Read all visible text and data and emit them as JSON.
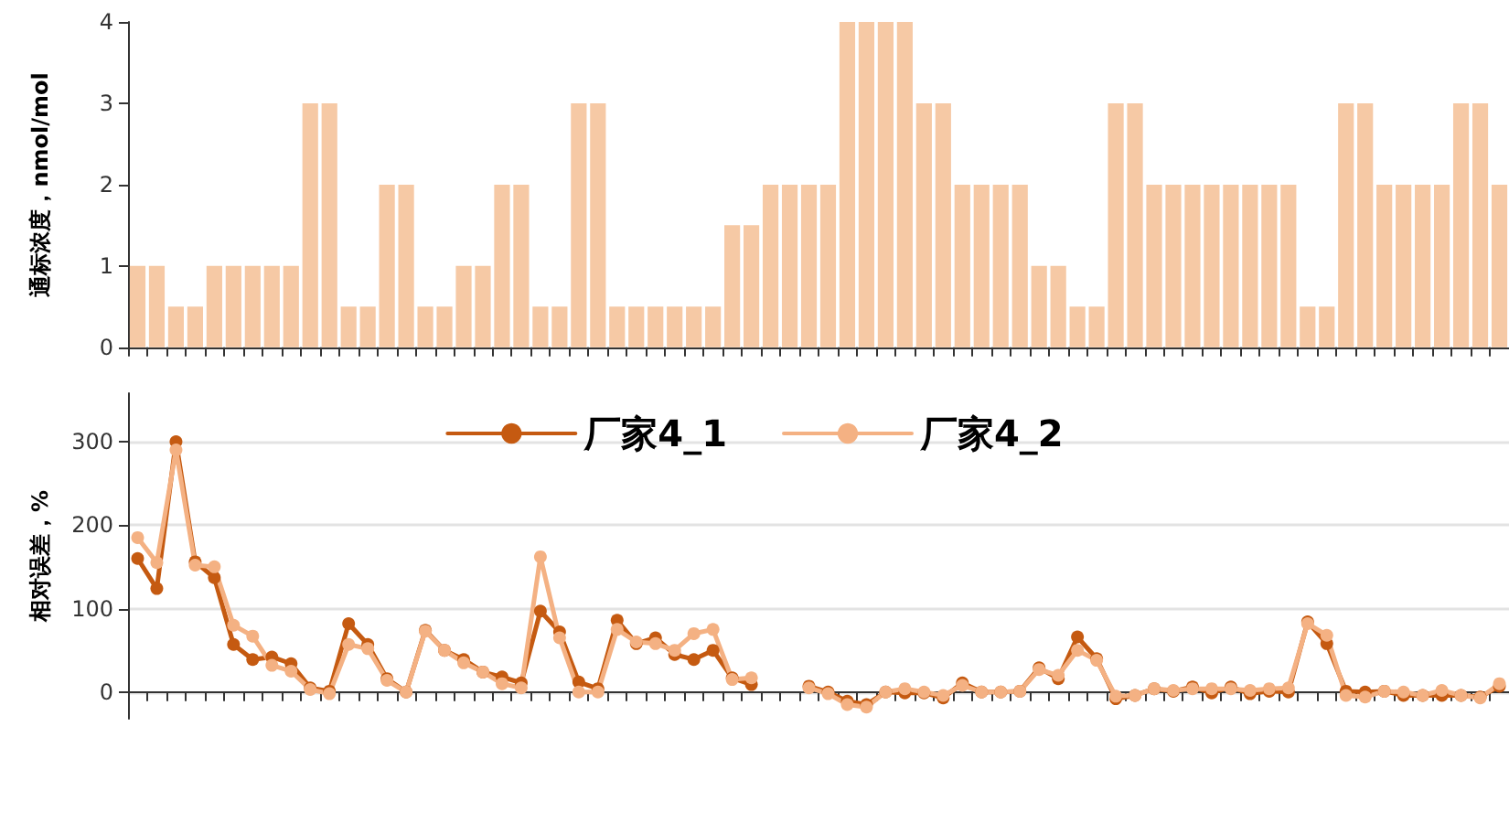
{
  "chart_data": [
    {
      "type": "bar",
      "ylabel": "通标浓度，nmol/mol",
      "color": "#f6c9a5",
      "ylim": [
        0,
        4
      ],
      "yticks": [
        0,
        1,
        2,
        3,
        4
      ],
      "grid": false,
      "legend": false,
      "categories": [
        null,
        null,
        null,
        null,
        null,
        null,
        null,
        null,
        null,
        null,
        null,
        null,
        null,
        null,
        null,
        null,
        null,
        null,
        null,
        null,
        null,
        null,
        null,
        null,
        null,
        null,
        null,
        null,
        null,
        null,
        null,
        null,
        null,
        null,
        null,
        null,
        null,
        null,
        null,
        null,
        null,
        null,
        null,
        null,
        null,
        null,
        null,
        null,
        null,
        null,
        null,
        null,
        null,
        null,
        null,
        null,
        null,
        null,
        null,
        null,
        null,
        null,
        null,
        null,
        null,
        null,
        null,
        null,
        null,
        null,
        null,
        null
      ],
      "values": [
        1,
        1,
        0.5,
        0.5,
        1,
        1,
        1,
        1,
        1,
        3,
        3,
        0.5,
        0.5,
        2,
        2,
        0.5,
        0.5,
        1,
        1,
        2,
        2,
        0.5,
        0.5,
        3,
        3,
        0.5,
        0.5,
        0.5,
        0.5,
        0.5,
        0.5,
        1.5,
        1.5,
        2,
        2,
        2,
        2,
        4,
        4,
        4,
        4,
        3,
        3,
        2,
        2,
        2,
        2,
        1,
        1,
        0.5,
        0.5,
        3,
        3,
        2,
        2,
        2,
        2,
        2,
        2,
        2,
        2,
        0.5,
        0.5,
        3,
        3,
        2,
        2,
        2,
        2,
        3,
        3,
        2
      ]
    },
    {
      "type": "line",
      "ylabel": "相对误差，%",
      "ylim": [
        -32,
        358
      ],
      "yticks": [
        0,
        100,
        200,
        300
      ],
      "grid": "y",
      "legend": "top",
      "marker": "circle",
      "line_style": "solid",
      "categories": [
        null,
        null,
        null,
        null,
        null,
        null,
        null,
        null,
        null,
        null,
        null,
        null,
        null,
        null,
        null,
        null,
        null,
        null,
        null,
        null,
        null,
        null,
        null,
        null,
        null,
        null,
        null,
        null,
        null,
        null,
        null,
        null,
        null,
        null,
        null,
        null,
        null,
        null,
        null,
        null,
        null,
        null,
        null,
        null,
        null,
        null,
        null,
        null,
        null,
        null,
        null,
        null,
        null,
        null,
        null,
        null,
        null,
        null,
        null,
        null,
        null,
        null,
        null,
        null,
        null,
        null,
        null,
        null,
        null,
        null,
        null,
        null
      ],
      "series": [
        {
          "name": "厂家4_1",
          "color": "#c55a11",
          "values": [
            160,
            124,
            300,
            156,
            137,
            57,
            39,
            42,
            34,
            5,
            1,
            82,
            57,
            16,
            0,
            74,
            50,
            39,
            24,
            18,
            11,
            97,
            72,
            12,
            4,
            86,
            58,
            65,
            45,
            39,
            50,
            17,
            9,
            null,
            null,
            7,
            0,
            -11,
            -15,
            0,
            -1,
            -1,
            -7,
            11,
            0,
            0,
            1,
            29,
            16,
            66,
            40,
            -8,
            -4,
            4,
            1,
            6,
            -1,
            6,
            -2,
            1,
            0,
            84,
            58,
            1,
            0,
            1,
            -4,
            -4,
            -4,
            -4,
            -6,
            7
          ]
        },
        {
          "name": "厂家4_2",
          "color": "#f4b183",
          "values": [
            185,
            155,
            290,
            152,
            150,
            80,
            67,
            32,
            25,
            3,
            -2,
            57,
            52,
            14,
            0,
            73,
            50,
            35,
            24,
            10,
            5,
            162,
            65,
            0,
            0,
            75,
            60,
            58,
            50,
            70,
            75,
            15,
            17,
            null,
            null,
            5,
            -2,
            -15,
            -18,
            0,
            4,
            0,
            -4,
            8,
            0,
            0,
            1,
            27,
            20,
            50,
            38,
            -5,
            -4,
            4,
            2,
            4,
            4,
            4,
            2,
            4,
            5,
            82,
            68,
            -4,
            -6,
            1,
            0,
            -4,
            2,
            -4,
            -7,
            10
          ]
        }
      ]
    }
  ]
}
